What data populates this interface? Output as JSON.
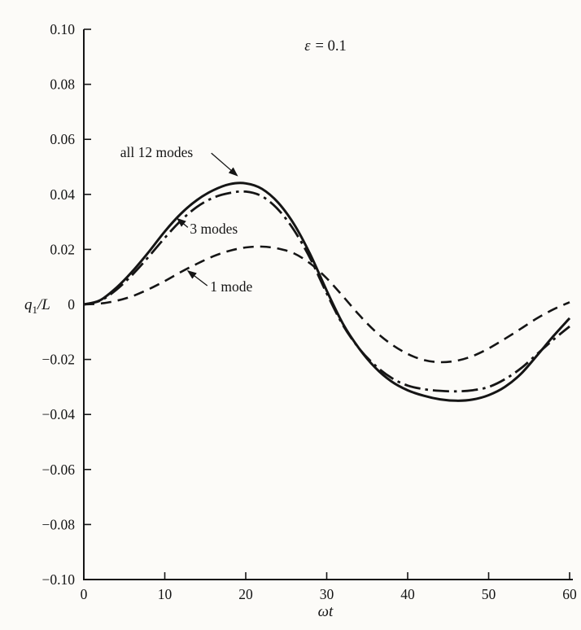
{
  "figure": {
    "background": "#fcfbf8",
    "ink": "#151515"
  },
  "chart_data": {
    "type": "line",
    "title": "",
    "xlabel": "ωt",
    "ylabel": "q1/L",
    "ylabel_parts": {
      "base": "q",
      "sub": "1",
      "rest": "/L"
    },
    "epsilon": {
      "text": "ε = 0.1",
      "symbol": "ε",
      "rest": "= 0.1"
    },
    "grid": false,
    "legend_position": "inline-annotations",
    "xlim": [
      0,
      60
    ],
    "ylim": [
      -0.1,
      0.1
    ],
    "x_ticks": {
      "values": [
        0,
        10,
        20,
        30,
        40,
        50,
        60
      ],
      "labels": [
        "0",
        "10",
        "20",
        "30",
        "40",
        "50",
        "60"
      ]
    },
    "y_ticks": {
      "values": [
        0.1,
        0.08,
        0.06,
        0.04,
        0.02,
        0,
        -0.02,
        -0.04,
        -0.06,
        -0.08,
        -0.1
      ],
      "labels": [
        "0.10",
        "0.08",
        "0.06",
        "0.04",
        "0.02",
        "0",
        "−0.02",
        "−0.04",
        "−0.06",
        "−0.08",
        "−0.10"
      ]
    },
    "x": [
      0,
      2,
      4,
      6,
      8,
      10,
      12,
      14,
      16,
      18,
      20,
      22,
      24,
      26,
      28,
      30,
      32,
      34,
      36,
      38,
      40,
      42,
      44,
      46,
      48,
      50,
      52,
      54,
      56,
      58,
      60
    ],
    "series": [
      {
        "name": "all 12 modes",
        "style": "solid",
        "width": 3,
        "y": [
          0.0,
          0.0015,
          0.006,
          0.012,
          0.019,
          0.0265,
          0.033,
          0.038,
          0.0415,
          0.0437,
          0.044,
          0.042,
          0.037,
          0.029,
          0.018,
          0.005,
          -0.007,
          -0.016,
          -0.023,
          -0.028,
          -0.0312,
          -0.0332,
          -0.0345,
          -0.035,
          -0.0346,
          -0.033,
          -0.03,
          -0.0252,
          -0.0185,
          -0.0115,
          -0.005
        ]
      },
      {
        "name": "3 modes",
        "style": "dashdot",
        "width": 2.8,
        "y": [
          0.0,
          0.0013,
          0.0053,
          0.0108,
          0.0173,
          0.0242,
          0.0305,
          0.0355,
          0.0388,
          0.0405,
          0.041,
          0.0393,
          0.0345,
          0.0268,
          0.0165,
          0.004,
          -0.0075,
          -0.016,
          -0.0222,
          -0.0267,
          -0.0295,
          -0.0308,
          -0.0314,
          -0.0316,
          -0.0312,
          -0.03,
          -0.0272,
          -0.0232,
          -0.018,
          -0.0128,
          -0.008
        ]
      },
      {
        "name": "1 mode",
        "style": "dashed",
        "width": 2.6,
        "y": [
          0.0,
          0.0003,
          0.0013,
          0.003,
          0.0055,
          0.0085,
          0.0118,
          0.0148,
          0.0175,
          0.0195,
          0.0207,
          0.021,
          0.0203,
          0.0185,
          0.0148,
          0.0095,
          0.003,
          -0.0038,
          -0.0098,
          -0.0145,
          -0.018,
          -0.0202,
          -0.021,
          -0.0205,
          -0.0188,
          -0.016,
          -0.0125,
          -0.0088,
          -0.005,
          -0.0018,
          0.0008
        ]
      }
    ],
    "annotations": [
      {
        "id": "all-12-modes",
        "text": "all 12 modes",
        "tx": 4.5,
        "ty": 0.0535,
        "arrow": [
          15.75,
          0.055,
          18.95,
          0.0468
        ]
      },
      {
        "id": "3-modes",
        "text": "3 modes",
        "tx": 13.1,
        "ty": 0.0258,
        "arrow": [
          12.85,
          0.028,
          11.55,
          0.0312
        ]
      },
      {
        "id": "1-mode",
        "text": "1 mode",
        "tx": 15.6,
        "ty": 0.0047,
        "arrow": [
          15.25,
          0.0068,
          12.85,
          0.0122
        ]
      }
    ]
  }
}
